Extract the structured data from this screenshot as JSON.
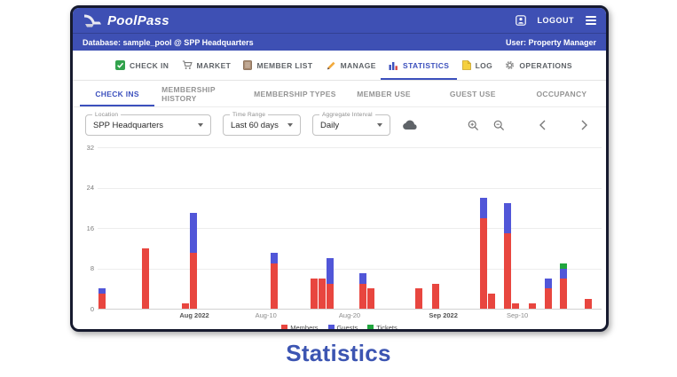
{
  "header": {
    "app_name": "PoolPass",
    "logout_label": "LOGOUT",
    "database_info": "Database: sample_pool @ SPP Headquarters",
    "user_info": "User: Property Manager"
  },
  "nav_tabs": [
    {
      "label": "CHECK IN",
      "icon": "check-in-icon",
      "active": false
    },
    {
      "label": "MARKET",
      "icon": "market-cart-icon",
      "active": false
    },
    {
      "label": "MEMBER LIST",
      "icon": "member-list-icon",
      "active": false
    },
    {
      "label": "MANAGE",
      "icon": "manage-pencil-icon",
      "active": false
    },
    {
      "label": "STATISTICS",
      "icon": "statistics-chart-icon",
      "active": true
    },
    {
      "label": "LOG",
      "icon": "log-file-icon",
      "active": false
    },
    {
      "label": "OPERATIONS",
      "icon": "operations-gear-icon",
      "active": false
    }
  ],
  "sub_tabs": [
    {
      "label": "CHECK INS",
      "active": true
    },
    {
      "label": "MEMBERSHIP HISTORY",
      "active": false
    },
    {
      "label": "MEMBERSHIP TYPES",
      "active": false
    },
    {
      "label": "MEMBER USE",
      "active": false
    },
    {
      "label": "GUEST USE",
      "active": false
    },
    {
      "label": "OCCUPANCY",
      "active": false
    }
  ],
  "filters": {
    "location": {
      "label": "Location",
      "value": "SPP Headquarters"
    },
    "time_range": {
      "label": "Time Range",
      "value": "Last 60 days"
    },
    "aggregate_interval": {
      "label": "Aggregate Interval",
      "value": "Daily"
    }
  },
  "toolbar_icons": [
    "cloud-download-icon",
    "zoom-in-icon",
    "zoom-out-icon",
    "chevron-left-icon",
    "chevron-right-icon"
  ],
  "chart_data": {
    "type": "bar",
    "stacked": true,
    "title": "",
    "xlabel": "",
    "ylabel": "",
    "ylim": [
      0,
      32
    ],
    "yticks": [
      0,
      8,
      16,
      24,
      32
    ],
    "grid": true,
    "legend_position": "bottom",
    "xticks": [
      {
        "label": "Aug 2022",
        "pos": 0.192,
        "major": true
      },
      {
        "label": "Aug-10",
        "pos": 0.334,
        "major": false
      },
      {
        "label": "Aug-20",
        "pos": 0.5,
        "major": false
      },
      {
        "label": "Sep 2022",
        "pos": 0.686,
        "major": true
      },
      {
        "label": "Sep-10",
        "pos": 0.833,
        "major": false
      }
    ],
    "legend": [
      {
        "label": "Members",
        "color": "#e8463f"
      },
      {
        "label": "Guests",
        "color": "#5156d8"
      },
      {
        "label": "Tickets",
        "color": "#21a63e"
      }
    ],
    "bars": [
      {
        "pos": 0.008,
        "members": 3,
        "guests": 1,
        "tickets": 0
      },
      {
        "pos": 0.095,
        "members": 12,
        "guests": 0,
        "tickets": 0
      },
      {
        "pos": 0.175,
        "members": 1,
        "guests": 0,
        "tickets": 0
      },
      {
        "pos": 0.191,
        "members": 11,
        "guests": 8,
        "tickets": 0
      },
      {
        "pos": 0.35,
        "members": 9,
        "guests": 2,
        "tickets": 0
      },
      {
        "pos": 0.43,
        "members": 6,
        "guests": 0,
        "tickets": 0
      },
      {
        "pos": 0.446,
        "members": 6,
        "guests": 0,
        "tickets": 0
      },
      {
        "pos": 0.462,
        "members": 5,
        "guests": 5,
        "tickets": 0
      },
      {
        "pos": 0.526,
        "members": 5,
        "guests": 2,
        "tickets": 0
      },
      {
        "pos": 0.542,
        "members": 4,
        "guests": 0,
        "tickets": 0
      },
      {
        "pos": 0.637,
        "members": 4,
        "guests": 0,
        "tickets": 0
      },
      {
        "pos": 0.671,
        "members": 5,
        "guests": 0,
        "tickets": 0
      },
      {
        "pos": 0.766,
        "members": 18,
        "guests": 4,
        "tickets": 0
      },
      {
        "pos": 0.782,
        "members": 3,
        "guests": 0,
        "tickets": 0
      },
      {
        "pos": 0.813,
        "members": 15,
        "guests": 6,
        "tickets": 0
      },
      {
        "pos": 0.829,
        "members": 1,
        "guests": 0,
        "tickets": 0
      },
      {
        "pos": 0.862,
        "members": 1,
        "guests": 0,
        "tickets": 0
      },
      {
        "pos": 0.894,
        "members": 4,
        "guests": 2,
        "tickets": 0
      },
      {
        "pos": 0.924,
        "members": 6,
        "guests": 2,
        "tickets": 1
      },
      {
        "pos": 0.973,
        "members": 2,
        "guests": 0,
        "tickets": 0
      }
    ]
  },
  "caption": "Statistics"
}
